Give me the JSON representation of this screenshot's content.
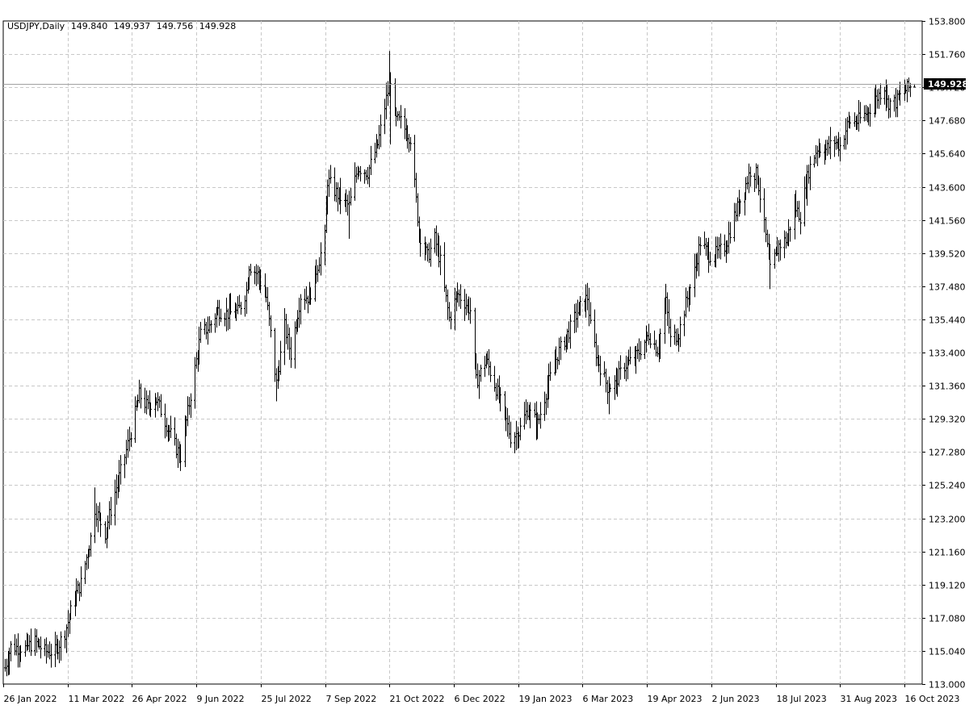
{
  "header": {
    "symbol": "USDJPY,Daily",
    "open": "149.840",
    "high": "149.937",
    "low": "149.756",
    "close": "149.928"
  },
  "current_price_label": "149.928",
  "colors": {
    "background": "#ffffff",
    "bars": "#000000",
    "grid": "#c8c8c8",
    "price_label_bg": "#000000",
    "price_label_text": "#ffffff"
  },
  "chart_data": {
    "type": "ohlc-bar",
    "symbol": "USDJPY",
    "timeframe": "Daily",
    "ylim": [
      113.0,
      153.8
    ],
    "y_ticks": [
      "153.800",
      "151.760",
      "149.720",
      "147.680",
      "145.640",
      "143.600",
      "141.560",
      "139.520",
      "137.480",
      "135.440",
      "133.400",
      "131.360",
      "129.320",
      "127.280",
      "125.240",
      "123.200",
      "121.160",
      "119.120",
      "117.080",
      "115.040",
      "113.000"
    ],
    "x_ticks": [
      "26 Jan 2022",
      "11 Mar 2022",
      "26 Apr 2022",
      "9 Jun 2022",
      "25 Jul 2022",
      "7 Sep 2022",
      "21 Oct 2022",
      "6 Dec 2022",
      "19 Jan 2023",
      "6 Mar 2023",
      "19 Apr 2023",
      "2 Jun 2023",
      "18 Jul 2023",
      "31 Aug 2023",
      "16 Oct 2023"
    ],
    "x_range": [
      "2022-01-24",
      "2023-10-23"
    ],
    "grid": true,
    "current_price": 149.928,
    "close_path": [
      [
        "2022-01-24",
        114.0
      ],
      [
        "2022-01-28",
        115.3
      ],
      [
        "2022-02-07",
        115.2
      ],
      [
        "2022-02-14",
        115.6
      ],
      [
        "2022-02-21",
        115.0
      ],
      [
        "2022-02-28",
        115.0
      ],
      [
        "2022-03-07",
        116.2
      ],
      [
        "2022-03-14",
        118.4
      ],
      [
        "2022-03-18",
        119.2
      ],
      [
        "2022-03-25",
        122.0
      ],
      [
        "2022-03-28",
        123.8
      ],
      [
        "2022-04-04",
        122.3
      ],
      [
        "2022-04-11",
        124.8
      ],
      [
        "2022-04-18",
        127.0
      ],
      [
        "2022-04-22",
        128.5
      ],
      [
        "2022-04-28",
        130.8
      ],
      [
        "2022-05-04",
        130.0
      ],
      [
        "2022-05-09",
        130.7
      ],
      [
        "2022-05-16",
        129.2
      ],
      [
        "2022-05-24",
        127.5
      ],
      [
        "2022-05-27",
        127.0
      ],
      [
        "2022-06-03",
        130.8
      ],
      [
        "2022-06-10",
        134.5
      ],
      [
        "2022-06-16",
        135.0
      ],
      [
        "2022-06-22",
        136.0
      ],
      [
        "2022-06-28",
        135.8
      ],
      [
        "2022-07-06",
        135.9
      ],
      [
        "2022-07-12",
        137.2
      ],
      [
        "2022-07-14",
        138.8
      ],
      [
        "2022-07-20",
        138.2
      ],
      [
        "2022-07-26",
        136.8
      ],
      [
        "2022-08-02",
        131.5
      ],
      [
        "2022-08-08",
        135.0
      ],
      [
        "2022-08-12",
        133.3
      ],
      [
        "2022-08-19",
        136.9
      ],
      [
        "2022-08-25",
        136.8
      ],
      [
        "2022-08-31",
        138.8
      ],
      [
        "2022-09-05",
        140.5
      ],
      [
        "2022-09-07",
        144.0
      ],
      [
        "2022-09-14",
        143.1
      ],
      [
        "2022-09-22",
        142.4
      ],
      [
        "2022-09-28",
        144.8
      ],
      [
        "2022-10-05",
        144.5
      ],
      [
        "2022-10-12",
        146.2
      ],
      [
        "2022-10-18",
        149.0
      ],
      [
        "2022-10-21",
        150.3
      ],
      [
        "2022-10-24",
        147.7
      ],
      [
        "2022-10-28",
        147.6
      ],
      [
        "2022-11-04",
        146.6
      ],
      [
        "2022-11-10",
        140.8
      ],
      [
        "2022-11-16",
        139.3
      ],
      [
        "2022-11-21",
        140.4
      ],
      [
        "2022-11-25",
        139.0
      ],
      [
        "2022-12-01",
        135.5
      ],
      [
        "2022-12-07",
        137.0
      ],
      [
        "2022-12-12",
        136.5
      ],
      [
        "2022-12-16",
        136.0
      ],
      [
        "2022-12-20",
        131.6
      ],
      [
        "2022-12-27",
        133.0
      ],
      [
        "2023-01-03",
        131.2
      ],
      [
        "2023-01-09",
        129.5
      ],
      [
        "2023-01-13",
        128.2
      ],
      [
        "2023-01-19",
        128.5
      ],
      [
        "2023-01-25",
        129.9
      ],
      [
        "2023-02-01",
        129.0
      ],
      [
        "2023-02-08",
        131.3
      ],
      [
        "2023-02-15",
        133.3
      ],
      [
        "2023-02-23",
        134.7
      ],
      [
        "2023-03-01",
        135.9
      ],
      [
        "2023-03-08",
        136.8
      ],
      [
        "2023-03-10",
        135.0
      ],
      [
        "2023-03-15",
        133.0
      ],
      [
        "2023-03-22",
        131.3
      ],
      [
        "2023-03-27",
        131.5
      ],
      [
        "2023-04-03",
        132.6
      ],
      [
        "2023-04-10",
        133.0
      ],
      [
        "2023-04-14",
        133.6
      ],
      [
        "2023-04-20",
        134.5
      ],
      [
        "2023-04-26",
        133.6
      ],
      [
        "2023-05-02",
        136.5
      ],
      [
        "2023-05-05",
        134.2
      ],
      [
        "2023-05-11",
        134.6
      ],
      [
        "2023-05-16",
        136.4
      ],
      [
        "2023-05-22",
        138.4
      ],
      [
        "2023-05-26",
        140.2
      ],
      [
        "2023-06-01",
        139.4
      ],
      [
        "2023-06-07",
        139.5
      ],
      [
        "2023-06-13",
        140.0
      ],
      [
        "2023-06-19",
        141.8
      ],
      [
        "2023-06-26",
        143.5
      ],
      [
        "2023-06-30",
        144.6
      ],
      [
        "2023-07-05",
        144.3
      ],
      [
        "2023-07-11",
        140.5
      ],
      [
        "2023-07-14",
        138.4
      ],
      [
        "2023-07-20",
        140.0
      ],
      [
        "2023-07-26",
        140.4
      ],
      [
        "2023-07-31",
        142.4
      ],
      [
        "2023-08-04",
        141.8
      ],
      [
        "2023-08-10",
        144.6
      ],
      [
        "2023-08-16",
        146.0
      ],
      [
        "2023-08-22",
        145.9
      ],
      [
        "2023-08-28",
        146.4
      ],
      [
        "2023-09-01",
        146.1
      ],
      [
        "2023-09-07",
        147.6
      ],
      [
        "2023-09-13",
        147.6
      ],
      [
        "2023-09-20",
        148.2
      ],
      [
        "2023-09-26",
        149.0
      ],
      [
        "2023-10-02",
        149.8
      ],
      [
        "2023-10-04",
        148.8
      ],
      [
        "2023-10-10",
        148.8
      ],
      [
        "2023-10-16",
        149.5
      ],
      [
        "2023-10-23",
        149.93
      ]
    ],
    "spikes": [
      [
        "2022-10-20",
        151.95,
        "high"
      ],
      [
        "2022-10-21",
        146.2,
        "low"
      ],
      [
        "2022-08-02",
        130.4,
        "low"
      ],
      [
        "2022-09-22",
        140.4,
        "low"
      ],
      [
        "2022-03-28",
        125.1,
        "high"
      ],
      [
        "2023-07-14",
        137.3,
        "low"
      ],
      [
        "2023-10-03",
        150.2,
        "high"
      ],
      [
        "2023-01-16",
        127.2,
        "low"
      ],
      [
        "2023-03-23",
        129.6,
        "low"
      ]
    ]
  }
}
